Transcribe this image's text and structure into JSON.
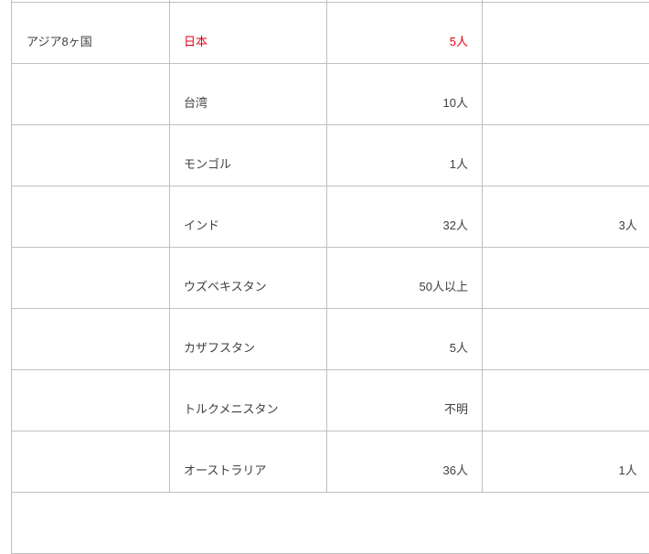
{
  "table": {
    "rows": [
      {
        "group": "アジア8ヶ国",
        "country": "日本",
        "count": "5人",
        "note": "",
        "highlight": true
      },
      {
        "group": "",
        "country": "台湾",
        "count": "10人",
        "note": "",
        "highlight": false
      },
      {
        "group": "",
        "country": "モンゴル",
        "count": "1人",
        "note": "",
        "highlight": false
      },
      {
        "group": "",
        "country": "インド",
        "count": "32人",
        "note": "3人",
        "highlight": false
      },
      {
        "group": "",
        "country": "ウズベキスタン",
        "count": "50人以上",
        "note": "",
        "highlight": false
      },
      {
        "group": "",
        "country": "カザフスタン",
        "count": "5人",
        "note": "",
        "highlight": false
      },
      {
        "group": "",
        "country": "トルクメニスタン",
        "count": "不明",
        "note": "",
        "highlight": false
      },
      {
        "group": "",
        "country": "オーストラリア",
        "count": "36人",
        "note": "1人",
        "highlight": false
      }
    ]
  },
  "colors": {
    "highlight_red": "#e60012",
    "text": "#3f3f3f",
    "border": "#c0c0c0"
  }
}
